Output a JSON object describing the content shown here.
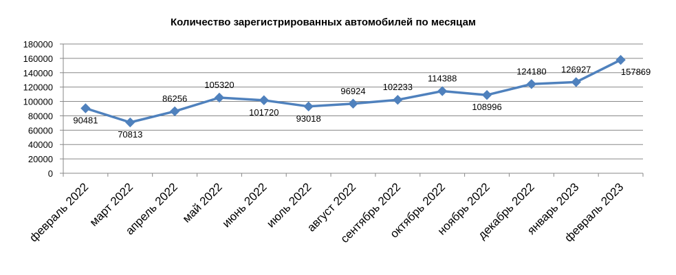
{
  "chart_data": {
    "type": "line",
    "title": "Количество зарегистрированных автомобилей по месяцам",
    "xlabel": "",
    "ylabel": "",
    "ylim": [
      0,
      180000
    ],
    "yticks": [
      0,
      20000,
      40000,
      60000,
      80000,
      100000,
      120000,
      140000,
      160000,
      180000
    ],
    "categories": [
      "февраль 2022",
      "март 2022",
      "апрель 2022",
      "май 2022",
      "июнь 2022",
      "июль 2022",
      "август 2022",
      "сентябрь 2022",
      "октябрь 2022",
      "ноябрь 2022",
      "декабрь 2022",
      "январь 2023",
      "февраль 2023"
    ],
    "series": [
      {
        "values": [
          90481,
          70813,
          86256,
          105320,
          101720,
          93018,
          96924,
          102233,
          114388,
          108996,
          124180,
          126927,
          157869
        ],
        "color": "#4F81BD",
        "marker": "diamond"
      }
    ],
    "data_labels": [
      "90481",
      "70813",
      "86256",
      "105320",
      "101720",
      "93018",
      "96924",
      "102233",
      "114388",
      "108996",
      "124180",
      "126927",
      "157869"
    ],
    "grid": true,
    "legend": "none"
  }
}
